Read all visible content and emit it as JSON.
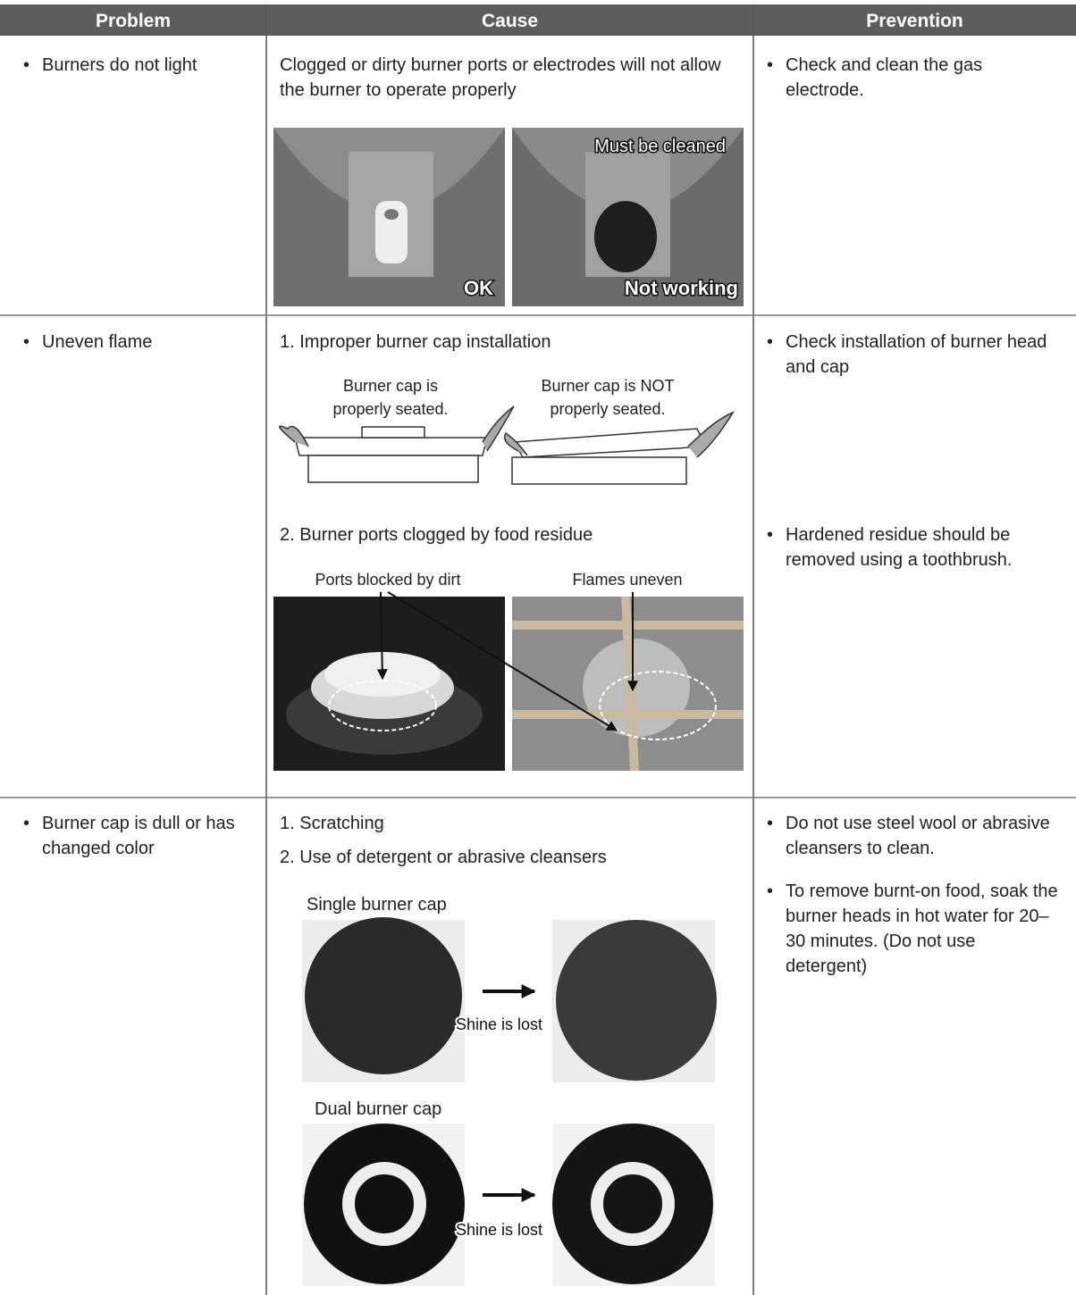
{
  "table": {
    "header": [
      "Problem",
      "Cause",
      "Prevention"
    ],
    "rows": [
      {
        "problem": "Burners do not light",
        "cause": "Clogged or dirty burner ports or electrodes will not allow the burner to operate properly",
        "photo_labels": [
          "OK",
          "Must be cleaned",
          "Not working"
        ],
        "prevention": [
          "Check and clean the gas electrode."
        ]
      },
      {
        "problem": "Uneven flame",
        "causes": [
          {
            "text": "1. Improper burner cap installation",
            "captions": [
              "Burner cap is properly seated.",
              "Burner cap is NOT properly seated."
            ]
          },
          {
            "text": "2. Burner ports clogged by food residue",
            "captions": [
              "Ports blocked by dirt",
              "Flames uneven"
            ]
          }
        ],
        "prevention": [
          "Check installation of burner head and cap",
          "Hardened residue should be removed using a toothbrush."
        ]
      },
      {
        "problem": "Burner cap is dull or has changed color",
        "causes": [
          "1. Scratching",
          "2. Use of detergent or abrasive cleansers"
        ],
        "figures": [
          {
            "title": "Single burner cap",
            "note": "Shine is lost"
          },
          {
            "title": "Dual burner cap",
            "note": "Shine is lost"
          }
        ],
        "prevention": [
          "Do not use steel wool or abrasive cleansers to clean.",
          "To remove burnt-on food, soak the burner heads in hot water for 20–30 minutes. (Do not use detergent)"
        ]
      }
    ]
  }
}
